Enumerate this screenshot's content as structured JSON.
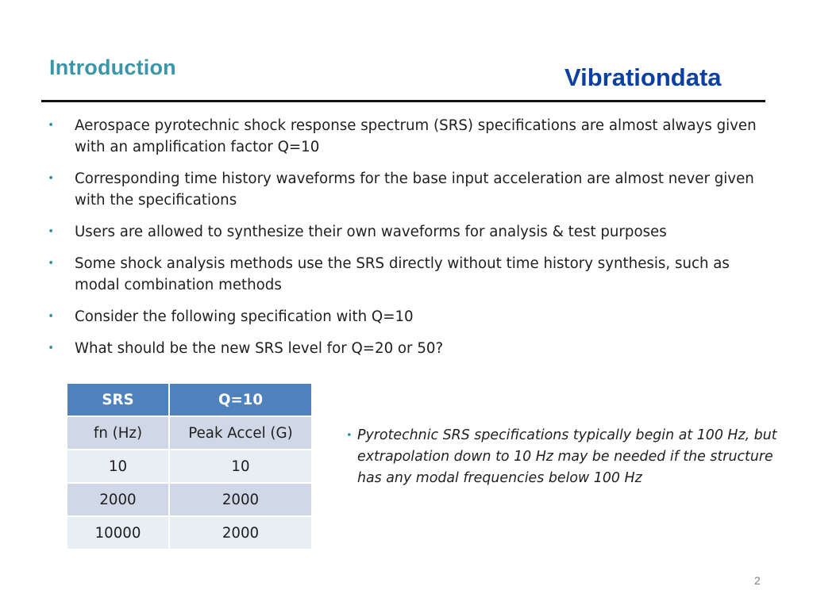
{
  "slide": {
    "title": "Introduction",
    "brand": "Vibrationdata",
    "page_number": "2"
  },
  "bullets": [
    {
      "mark": "•",
      "text": "Aerospace pyrotechnic shock response spectrum (SRS) specifications are almost always given with an amplification factor Q=10"
    },
    {
      "mark": "•",
      "text": "Corresponding time history waveforms for the base input acceleration are almost never given with the specifications"
    },
    {
      "mark": "•",
      "text": "Users are allowed to synthesize their own waveforms for analysis & test purposes"
    },
    {
      "mark": "•",
      "text": "Some shock analysis methods use the SRS directly without time history synthesis, such as modal combination methods"
    },
    {
      "mark": "•",
      "text": "Consider the following specification with Q=10"
    },
    {
      "mark": "•",
      "text": "What should be the new SRS level for Q=20 or 50?"
    }
  ],
  "table": {
    "headers": [
      "SRS",
      "Q=10"
    ],
    "rows": [
      [
        "fn (Hz)",
        "Peak Accel (G)"
      ],
      [
        "10",
        "10"
      ],
      [
        "2000",
        "2000"
      ],
      [
        "10000",
        "2000"
      ]
    ]
  },
  "side_note": {
    "mark": "•",
    "text": "Pyrotechnic SRS specifications typically begin at 100 Hz, but extrapolation down to 10 Hz may be needed if the structure has any modal frequencies below 100 Hz"
  },
  "colors": {
    "title": "#3a95a8",
    "brand": "#0c41a1",
    "table_header": "#4f81bd",
    "table_row_odd": "#d0d8e8",
    "table_row_even": "#e9edf4"
  }
}
